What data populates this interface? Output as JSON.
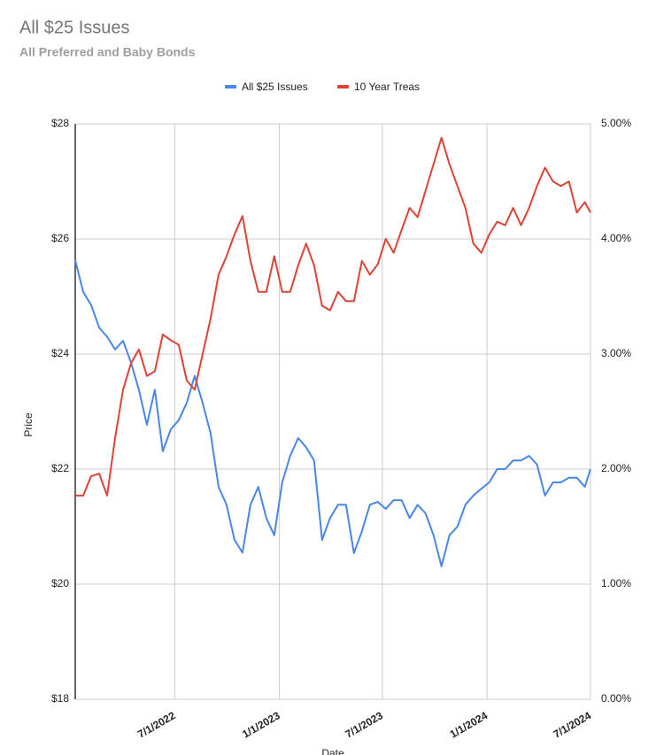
{
  "chart_data": {
    "type": "line",
    "title": "All $25 Issues",
    "subtitle": "All Preferred and Baby Bonds",
    "x_label": "Date",
    "y_label": "Price",
    "legend": "top",
    "grid": true,
    "x": [
      "1/7/2022",
      "1/21/2022",
      "2/4/2022",
      "2/18/2022",
      "3/4/2022",
      "3/18/2022",
      "4/1/2022",
      "4/15/2022",
      "4/29/2022",
      "5/13/2022",
      "5/27/2022",
      "6/10/2022",
      "6/24/2022",
      "7/8/2022",
      "7/22/2022",
      "8/5/2022",
      "8/19/2022",
      "9/2/2022",
      "9/16/2022",
      "9/30/2022",
      "10/14/2022",
      "10/28/2022",
      "11/11/2022",
      "11/25/2022",
      "12/9/2022",
      "12/23/2022",
      "1/6/2023",
      "1/20/2023",
      "2/3/2023",
      "2/17/2023",
      "3/3/2023",
      "3/17/2023",
      "3/31/2023",
      "4/14/2023",
      "4/28/2023",
      "5/12/2023",
      "5/26/2023",
      "6/9/2023",
      "6/23/2023",
      "7/7/2023",
      "7/21/2023",
      "8/4/2023",
      "8/18/2023",
      "9/1/2023",
      "9/15/2023",
      "9/29/2023",
      "10/13/2023",
      "10/27/2023",
      "11/10/2023",
      "11/24/2023",
      "12/8/2023",
      "12/22/2023",
      "1/5/2024",
      "1/19/2024",
      "2/2/2024",
      "2/16/2024",
      "3/1/2024",
      "3/15/2024",
      "3/29/2024",
      "4/12/2024",
      "4/26/2024",
      "5/10/2024",
      "5/24/2024",
      "6/7/2024",
      "6/21/2024",
      "7/1/2024"
    ],
    "series": [
      {
        "name": "All $25 Issues",
        "color": "#4a86e8",
        "values": [
          25.63,
          25.08,
          24.85,
          24.46,
          24.3,
          24.08,
          24.23,
          23.85,
          23.38,
          22.77,
          23.38,
          22.31,
          22.69,
          22.85,
          23.15,
          23.62,
          23.15,
          22.62,
          21.69,
          21.38,
          20.77,
          20.55,
          21.38,
          21.69,
          21.15,
          20.85,
          21.77,
          22.23,
          22.54,
          22.38,
          22.15,
          20.77,
          21.15,
          21.38,
          21.38,
          20.54,
          20.92,
          21.38,
          21.43,
          21.31,
          21.46,
          21.46,
          21.15,
          21.38,
          21.23,
          20.85,
          20.31,
          20.85,
          21.0,
          21.38,
          21.54,
          21.66,
          21.77,
          22.0,
          22.0,
          22.15,
          22.15,
          22.23,
          22.08,
          21.54,
          21.77,
          21.77,
          21.85,
          21.85,
          21.69,
          22.0
        ]
      },
      {
        "name": "10 Year Treas",
        "color": "#db4437",
        "axis": "y2",
        "values": [
          1.77,
          1.77,
          1.94,
          1.96,
          1.77,
          2.27,
          2.69,
          2.92,
          3.04,
          2.81,
          2.85,
          3.17,
          3.12,
          3.08,
          2.77,
          2.69,
          3.0,
          3.31,
          3.69,
          3.85,
          4.04,
          4.2,
          3.81,
          3.54,
          3.54,
          3.85,
          3.54,
          3.54,
          3.77,
          3.96,
          3.77,
          3.42,
          3.38,
          3.54,
          3.46,
          3.46,
          3.81,
          3.69,
          3.78,
          4.0,
          3.88,
          4.08,
          4.27,
          4.19,
          4.42,
          4.65,
          4.88,
          4.65,
          4.46,
          4.27,
          3.96,
          3.88,
          4.04,
          4.15,
          4.12,
          4.27,
          4.12,
          4.27,
          4.46,
          4.62,
          4.5,
          4.46,
          4.5,
          4.23,
          4.32,
          4.23
        ]
      }
    ],
    "xlim": [
      "1/7/2022",
      "7/1/2024"
    ],
    "xticks": [
      "7/1/2022",
      "1/1/2023",
      "7/1/2023",
      "1/1/2024",
      "7/1/2024"
    ],
    "ylim": [
      18,
      28
    ],
    "yticks": [
      {
        "value": 18,
        "label": "$18"
      },
      {
        "value": 20,
        "label": "$20"
      },
      {
        "value": 22,
        "label": "$22"
      },
      {
        "value": 24,
        "label": "$24"
      },
      {
        "value": 26,
        "label": "$26"
      },
      {
        "value": 28,
        "label": "$28"
      }
    ],
    "y2lim": [
      0,
      5
    ],
    "y2ticks": [
      {
        "value": 0,
        "label": "0.00%"
      },
      {
        "value": 1,
        "label": "1.00%"
      },
      {
        "value": 2,
        "label": "2.00%"
      },
      {
        "value": 3,
        "label": "3.00%"
      },
      {
        "value": 4,
        "label": "4.00%"
      },
      {
        "value": 5,
        "label": "5.00%"
      }
    ]
  }
}
